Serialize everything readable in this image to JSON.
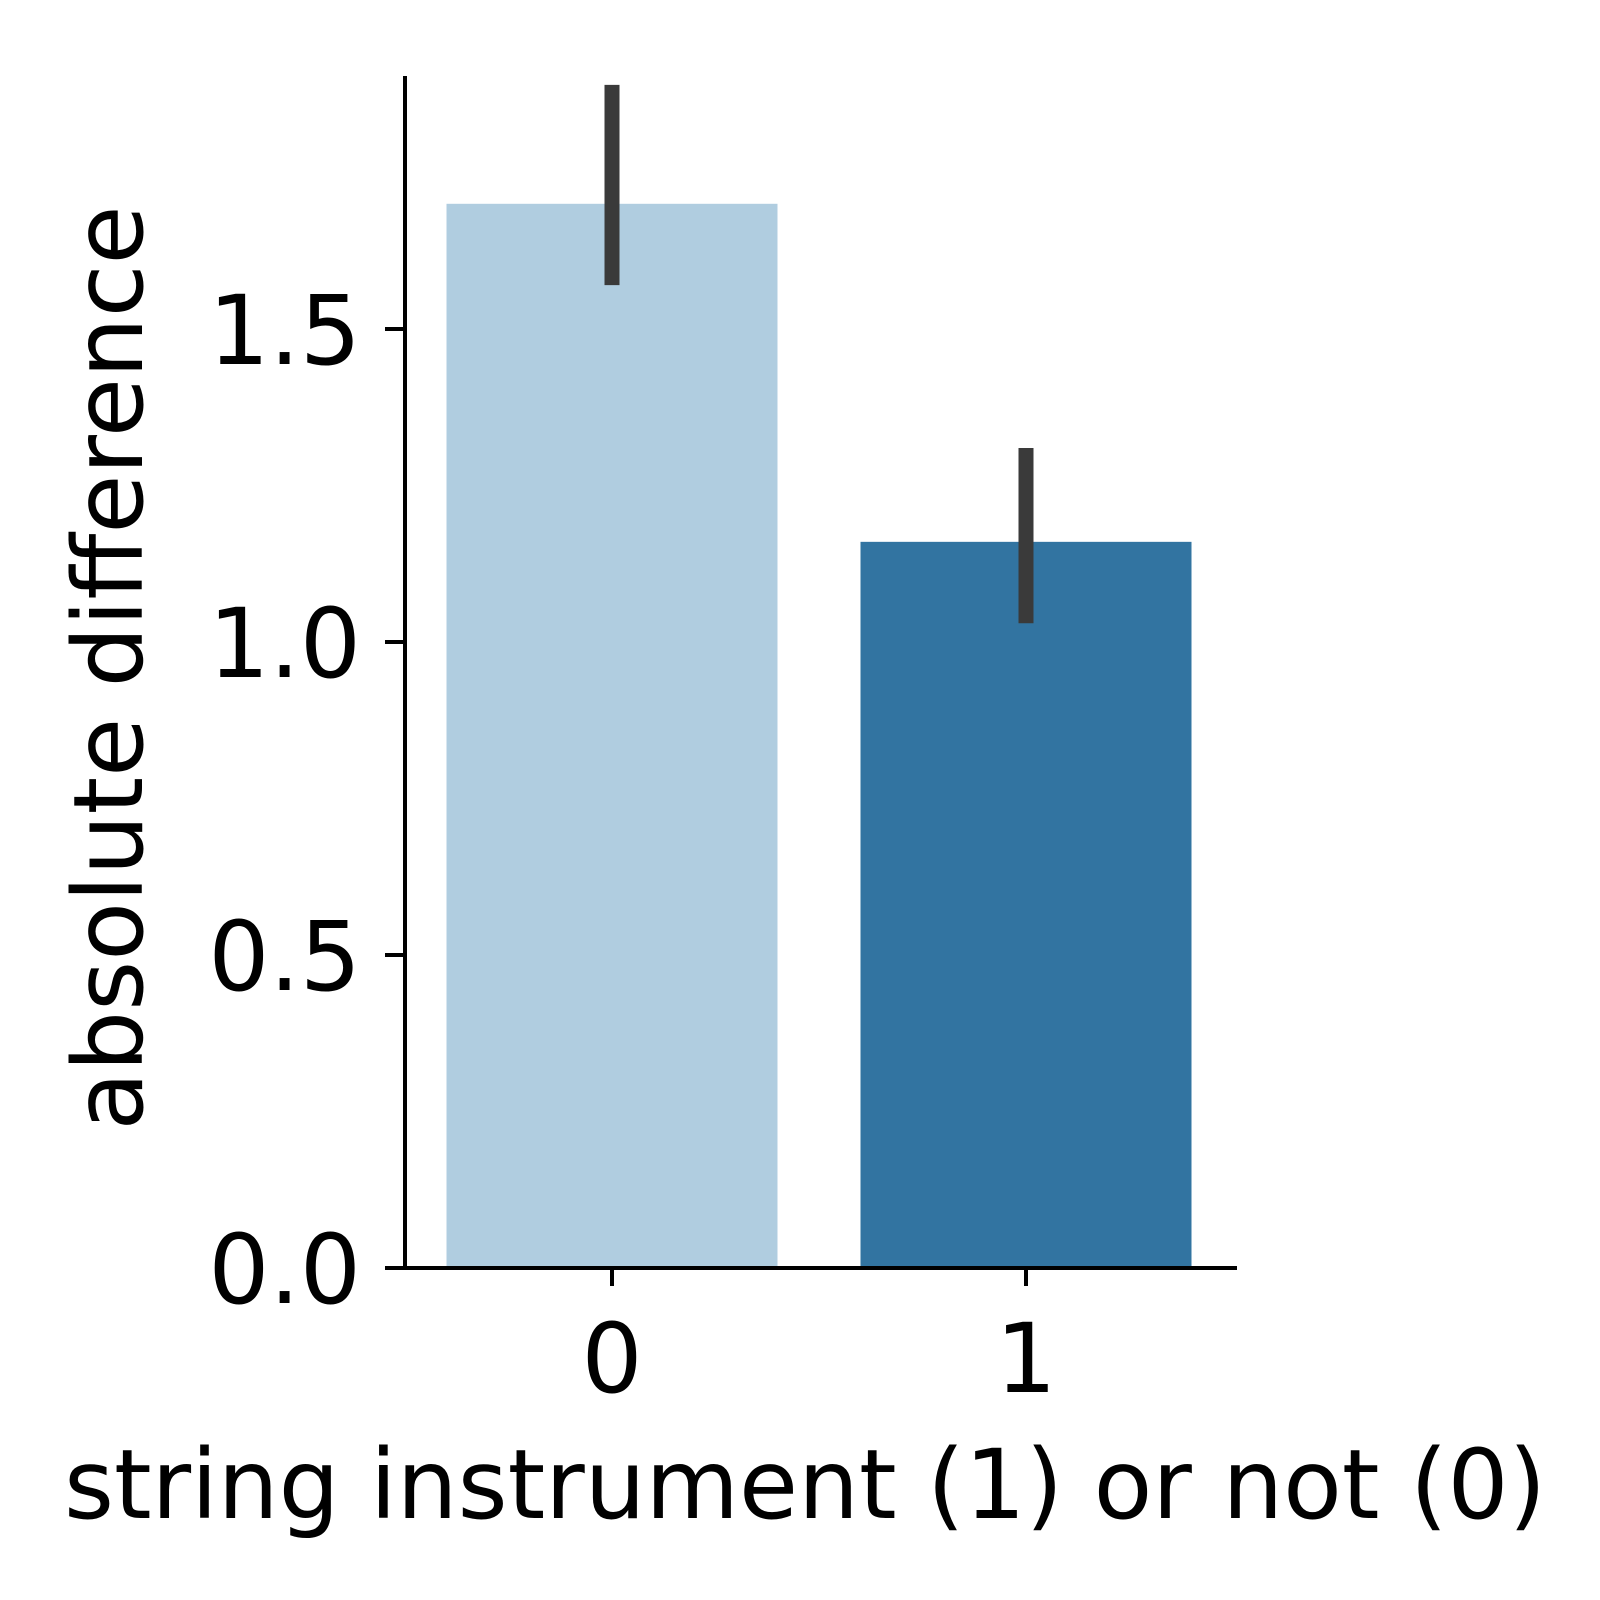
{
  "chart_data": {
    "type": "bar",
    "categories": [
      "0",
      "1"
    ],
    "values": [
      1.7,
      1.16
    ],
    "error_low": [
      1.57,
      1.03
    ],
    "error_high": [
      1.89,
      1.31
    ],
    "xlabel": "string instrument (1) or not (0)",
    "ylabel": "absolute difference",
    "ylim": [
      0,
      1.9
    ],
    "yticks": [
      0.0,
      0.5,
      1.0,
      1.5
    ],
    "ytick_labels": [
      "0.0",
      "0.5",
      "1.0",
      "1.5"
    ],
    "grid": false,
    "legend": "none",
    "colors": {
      "bars": [
        "#b0cde0",
        "#3274a1"
      ],
      "error_bar": "#3a3a3a",
      "axis": "#000000"
    }
  }
}
